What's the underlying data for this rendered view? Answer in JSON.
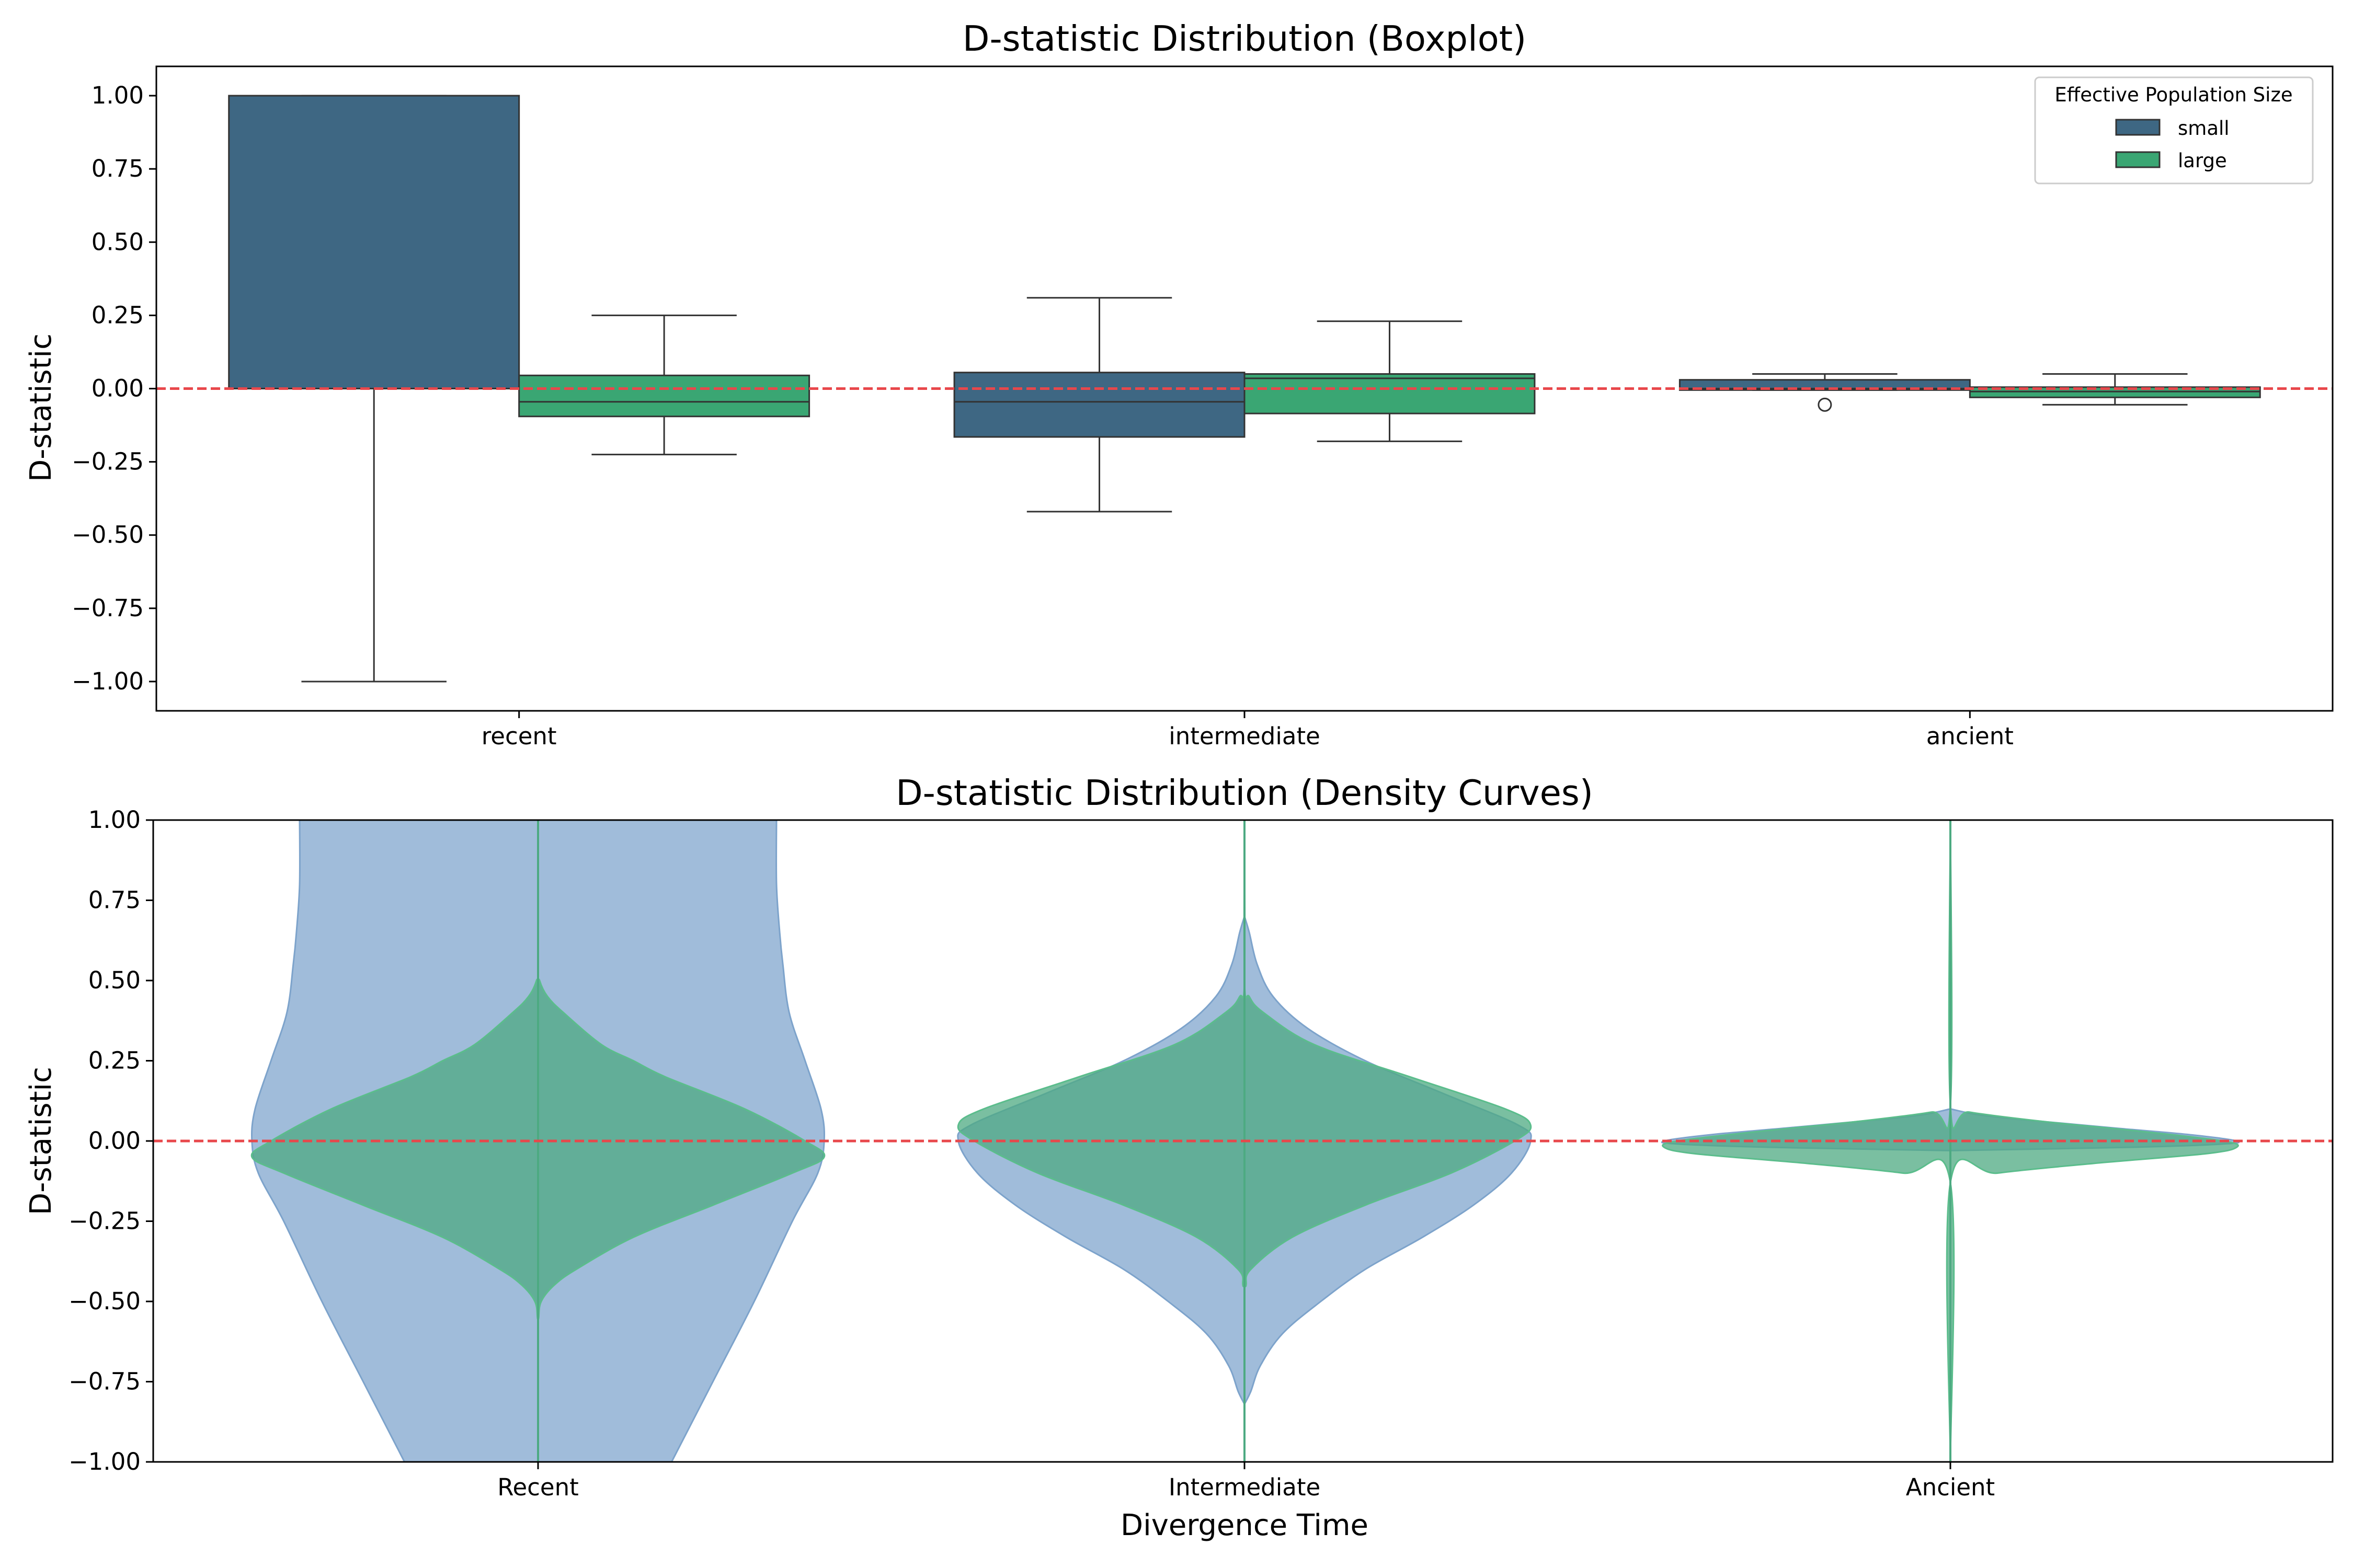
{
  "chart_data": [
    {
      "type": "box",
      "title": "D-statistic Distribution (Boxplot)",
      "xlabel": "",
      "ylabel": "D-statistic",
      "ylim": [
        -1.1,
        1.1
      ],
      "yticks": [
        -1.0,
        -0.75,
        -0.5,
        -0.25,
        0.0,
        0.25,
        0.5,
        0.75,
        1.0
      ],
      "ytick_labels": [
        "−1.00",
        "−0.75",
        "−0.50",
        "−0.25",
        "0.00",
        "0.25",
        "0.50",
        "0.75",
        "1.00"
      ],
      "categories": [
        "recent",
        "intermediate",
        "ancient"
      ],
      "reference_line": {
        "y": 0.0,
        "style": "dashed",
        "color": "#e8474b"
      },
      "legend": {
        "title": "Effective Population Size",
        "placement": "top-right"
      },
      "grid": false,
      "series": [
        {
          "name": "small",
          "color": "#3e6783",
          "boxes": [
            {
              "category": "recent",
              "whisker_low": -1.0,
              "q1": 0.0,
              "median": 0.0,
              "q3": 1.0,
              "whisker_high": 1.0,
              "outliers": []
            },
            {
              "category": "intermediate",
              "whisker_low": -0.42,
              "q1": -0.165,
              "median": -0.045,
              "q3": 0.055,
              "whisker_high": 0.31,
              "outliers": []
            },
            {
              "category": "ancient",
              "whisker_low": -0.005,
              "q1": -0.005,
              "median": 0.0,
              "q3": 0.03,
              "whisker_high": 0.05,
              "outliers": [
                -0.055
              ]
            }
          ]
        },
        {
          "name": "large",
          "color": "#3aa673",
          "boxes": [
            {
              "category": "recent",
              "whisker_low": -0.225,
              "q1": -0.095,
              "median": -0.045,
              "q3": 0.045,
              "whisker_high": 0.25,
              "outliers": []
            },
            {
              "category": "intermediate",
              "whisker_low": -0.18,
              "q1": -0.085,
              "median": 0.035,
              "q3": 0.05,
              "whisker_high": 0.23,
              "outliers": []
            },
            {
              "category": "ancient",
              "whisker_low": -0.055,
              "q1": -0.03,
              "median": -0.01,
              "q3": 0.005,
              "whisker_high": 0.05,
              "outliers": []
            }
          ]
        }
      ]
    },
    {
      "type": "violin",
      "title": "D-statistic Distribution (Density Curves)",
      "xlabel": "Divergence Time",
      "ylabel": "D-statistic",
      "ylim": [
        -1.0,
        1.0
      ],
      "yticks": [
        -1.0,
        -0.75,
        -0.5,
        -0.25,
        0.0,
        0.25,
        0.5,
        0.75,
        1.0
      ],
      "ytick_labels": [
        "−1.00",
        "−0.75",
        "−0.50",
        "−0.25",
        "0.00",
        "0.25",
        "0.50",
        "0.75",
        "1.00"
      ],
      "categories": [
        "Recent",
        "Intermediate",
        "Ancient"
      ],
      "reference_line": {
        "y": 0.0,
        "style": "dashed",
        "color": "#e8474b"
      },
      "grid": false,
      "series": [
        {
          "color": "#8fb0d3",
          "edge_color": "#7da3cb",
          "profiles": [
            {
              "category": "Recent",
              "points": [
                [
                  -1.0,
                  0.42
                ],
                [
                  -0.75,
                  0.55
                ],
                [
                  -0.5,
                  0.68
                ],
                [
                  -0.25,
                  0.8
                ],
                [
                  -0.1,
                  0.88
                ],
                [
                  0.0,
                  0.9
                ],
                [
                  0.1,
                  0.89
                ],
                [
                  0.25,
                  0.84
                ],
                [
                  0.4,
                  0.79
                ],
                [
                  0.55,
                  0.77
                ],
                [
                  0.65,
                  0.76
                ],
                [
                  0.8,
                  0.75
                ],
                [
                  1.0,
                  0.75
                ]
              ]
            },
            {
              "category": "Intermediate",
              "points": [
                [
                  -0.82,
                  0.0
                ],
                [
                  -0.78,
                  0.02
                ],
                [
                  -0.7,
                  0.05
                ],
                [
                  -0.6,
                  0.12
                ],
                [
                  -0.5,
                  0.24
                ],
                [
                  -0.4,
                  0.38
                ],
                [
                  -0.3,
                  0.56
                ],
                [
                  -0.2,
                  0.72
                ],
                [
                  -0.1,
                  0.84
                ],
                [
                  0.0,
                  0.9
                ],
                [
                  0.05,
                  0.86
                ],
                [
                  0.15,
                  0.62
                ],
                [
                  0.25,
                  0.38
                ],
                [
                  0.35,
                  0.2
                ],
                [
                  0.45,
                  0.09
                ],
                [
                  0.55,
                  0.04
                ],
                [
                  0.65,
                  0.015
                ],
                [
                  0.7,
                  0.0
                ]
              ]
            },
            {
              "category": "Ancient",
              "points": [
                [
                  -0.03,
                  0.0
                ],
                [
                  -0.02,
                  0.55
                ],
                [
                  -0.01,
                  0.85
                ],
                [
                  0.0,
                  0.9
                ],
                [
                  0.02,
                  0.75
                ],
                [
                  0.04,
                  0.52
                ],
                [
                  0.06,
                  0.3
                ],
                [
                  0.08,
                  0.1
                ],
                [
                  0.1,
                  0.0
                ]
              ]
            }
          ]
        },
        {
          "color": "#4daa82",
          "edge_color": "#5bbd8c",
          "profiles": [
            {
              "category": "Recent",
              "points": [
                [
                  -1.0,
                  0.0
                ],
                [
                  -0.6,
                  0.0
                ],
                [
                  -0.55,
                  0.002
                ],
                [
                  -0.5,
                  0.01
                ],
                [
                  -0.45,
                  0.05
                ],
                [
                  -0.4,
                  0.12
                ],
                [
                  -0.3,
                  0.3
                ],
                [
                  -0.2,
                  0.55
                ],
                [
                  -0.1,
                  0.8
                ],
                [
                  -0.05,
                  0.9
                ],
                [
                  0.0,
                  0.84
                ],
                [
                  0.1,
                  0.65
                ],
                [
                  0.2,
                  0.4
                ],
                [
                  0.25,
                  0.3
                ],
                [
                  0.3,
                  0.2
                ],
                [
                  0.4,
                  0.08
                ],
                [
                  0.45,
                  0.03
                ],
                [
                  0.5,
                  0.005
                ],
                [
                  0.55,
                  0.0
                ],
                [
                  1.0,
                  0.0
                ]
              ]
            },
            {
              "category": "Intermediate",
              "points": [
                [
                  -1.0,
                  0.0
                ],
                [
                  -0.5,
                  0.0
                ],
                [
                  -0.45,
                  0.005
                ],
                [
                  -0.4,
                  0.02
                ],
                [
                  -0.3,
                  0.15
                ],
                [
                  -0.2,
                  0.38
                ],
                [
                  -0.1,
                  0.65
                ],
                [
                  0.0,
                  0.85
                ],
                [
                  0.05,
                  0.9
                ],
                [
                  0.1,
                  0.82
                ],
                [
                  0.2,
                  0.52
                ],
                [
                  0.3,
                  0.22
                ],
                [
                  0.4,
                  0.06
                ],
                [
                  0.45,
                  0.015
                ],
                [
                  0.5,
                  0.0
                ],
                [
                  1.0,
                  0.0
                ]
              ]
            },
            {
              "category": "Ancient",
              "points": [
                [
                  -1.0,
                  0.0
                ],
                [
                  -0.13,
                  0.0
                ],
                [
                  -0.1,
                  0.15
                ],
                [
                  -0.07,
                  0.45
                ],
                [
                  -0.04,
                  0.8
                ],
                [
                  -0.02,
                  0.9
                ],
                [
                  0.0,
                  0.86
                ],
                [
                  0.03,
                  0.6
                ],
                [
                  0.06,
                  0.3
                ],
                [
                  0.09,
                  0.06
                ],
                [
                  0.11,
                  0.0
                ],
                [
                  1.0,
                  0.0
                ]
              ]
            }
          ]
        }
      ]
    }
  ]
}
